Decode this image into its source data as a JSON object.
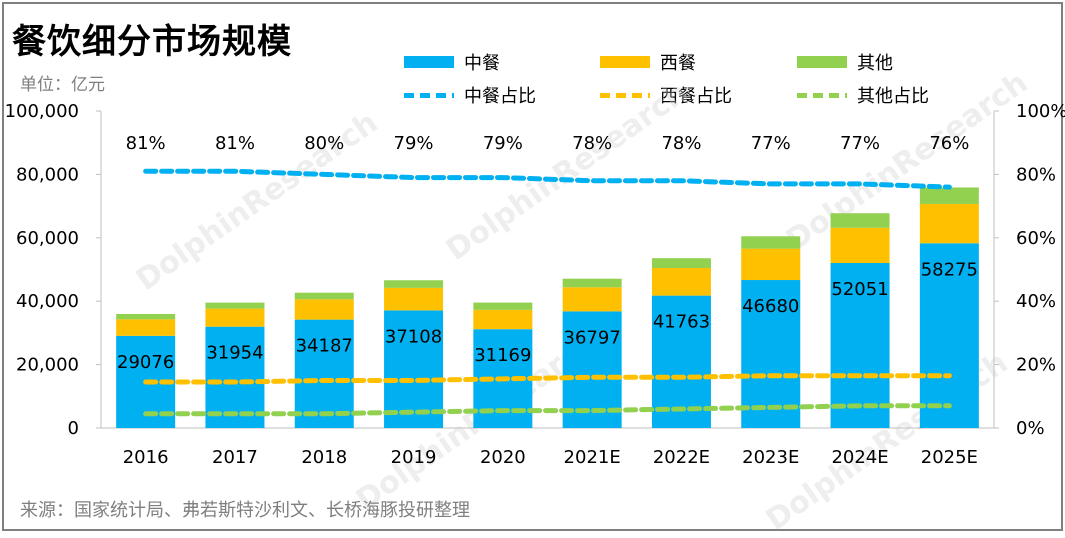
{
  "title": "餐饮细分市场规模",
  "unit_label": "单位：亿元",
  "source": "来源：国家统计局、弗若斯特沙利文、长桥海豚投研整理",
  "watermark": "DolphinResearch",
  "colors": {
    "chinese": "#00b0f0",
    "western": "#ffc000",
    "other": "#92d050",
    "axis": "#bfbfbf"
  },
  "legend": {
    "chinese": "中餐",
    "western": "西餐",
    "other": "其他",
    "chinese_share": "中餐占比",
    "western_share": "西餐占比",
    "other_share": "其他占比"
  },
  "chart_data": {
    "type": "bar",
    "stacked": true,
    "categories": [
      "2016",
      "2017",
      "2018",
      "2019",
      "2020",
      "2021E",
      "2022E",
      "2023E",
      "2024E",
      "2025E"
    ],
    "series": [
      {
        "name": "中餐",
        "values": [
          29076,
          31954,
          34187,
          37108,
          31169,
          36797,
          41763,
          46680,
          52051,
          58275
        ]
      },
      {
        "name": "西餐",
        "values": [
          5200,
          5700,
          6400,
          7100,
          6100,
          7600,
          8700,
          9900,
          11100,
          12400
        ]
      },
      {
        "name": "其他",
        "values": [
          1700,
          1900,
          2100,
          2400,
          2300,
          2700,
          3100,
          3900,
          4600,
          5200
        ]
      }
    ],
    "share_series": [
      {
        "name": "中餐占比",
        "values": [
          81,
          81,
          80,
          79,
          79,
          78,
          78,
          77,
          77,
          76
        ]
      },
      {
        "name": "西餐占比",
        "values": [
          14.5,
          14.5,
          15,
          15,
          15.5,
          16,
          16,
          16.5,
          16.5,
          16.5
        ]
      },
      {
        "name": "其他占比",
        "values": [
          4.5,
          4.5,
          4.5,
          5,
          5.5,
          5.5,
          6,
          6.5,
          7,
          7
        ]
      }
    ],
    "share_labels": [
      "81%",
      "81%",
      "80%",
      "79%",
      "79%",
      "78%",
      "78%",
      "77%",
      "77%",
      "76%"
    ],
    "y_left": {
      "min": 0,
      "max": 100000,
      "ticks": [
        "0",
        "20,000",
        "40,000",
        "60,000",
        "80,000",
        "100,000"
      ]
    },
    "y_right": {
      "min": 0,
      "max": 100,
      "ticks": [
        "0%",
        "20%",
        "40%",
        "60%",
        "80%",
        "100%"
      ]
    },
    "grid": false
  }
}
